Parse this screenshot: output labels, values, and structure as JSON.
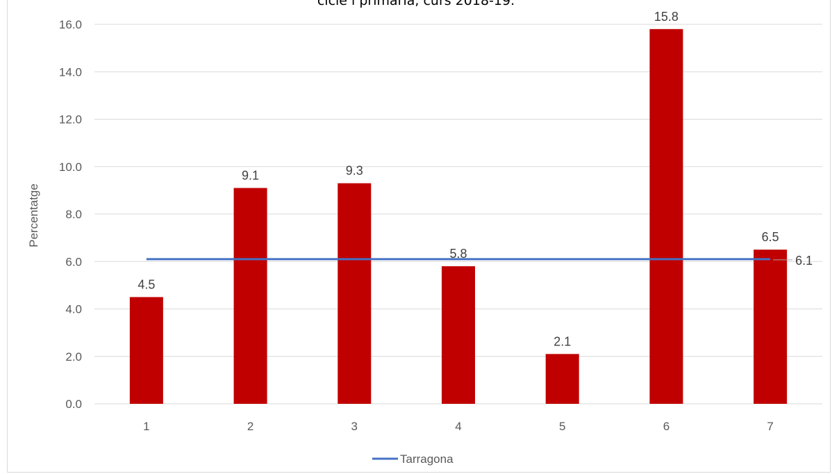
{
  "chart_data": {
    "type": "bar",
    "title": "cicle i primària, curs 2018-19.",
    "xlabel": "",
    "ylabel": "Percentatge",
    "categories": [
      "1",
      "2",
      "3",
      "4",
      "5",
      "6",
      "7"
    ],
    "values": [
      4.5,
      9.1,
      9.3,
      5.8,
      2.1,
      15.8,
      6.5
    ],
    "data_labels": [
      "4.5",
      "9.1",
      "9.3",
      "5.8",
      "2.1",
      "15.8",
      "6.5"
    ],
    "ylim": [
      0,
      16
    ],
    "yticks": [
      "0.0",
      "2.0",
      "4.0",
      "6.0",
      "8.0",
      "10.0",
      "12.0",
      "14.0",
      "16.0"
    ],
    "grid": true,
    "bar_color": "#c00000",
    "reference_line": {
      "name": "Tarragona",
      "value": 6.1,
      "label": "6.1",
      "color": "#4472c4"
    },
    "legend": {
      "position": "bottom",
      "entries": [
        "Tarragona"
      ]
    }
  }
}
